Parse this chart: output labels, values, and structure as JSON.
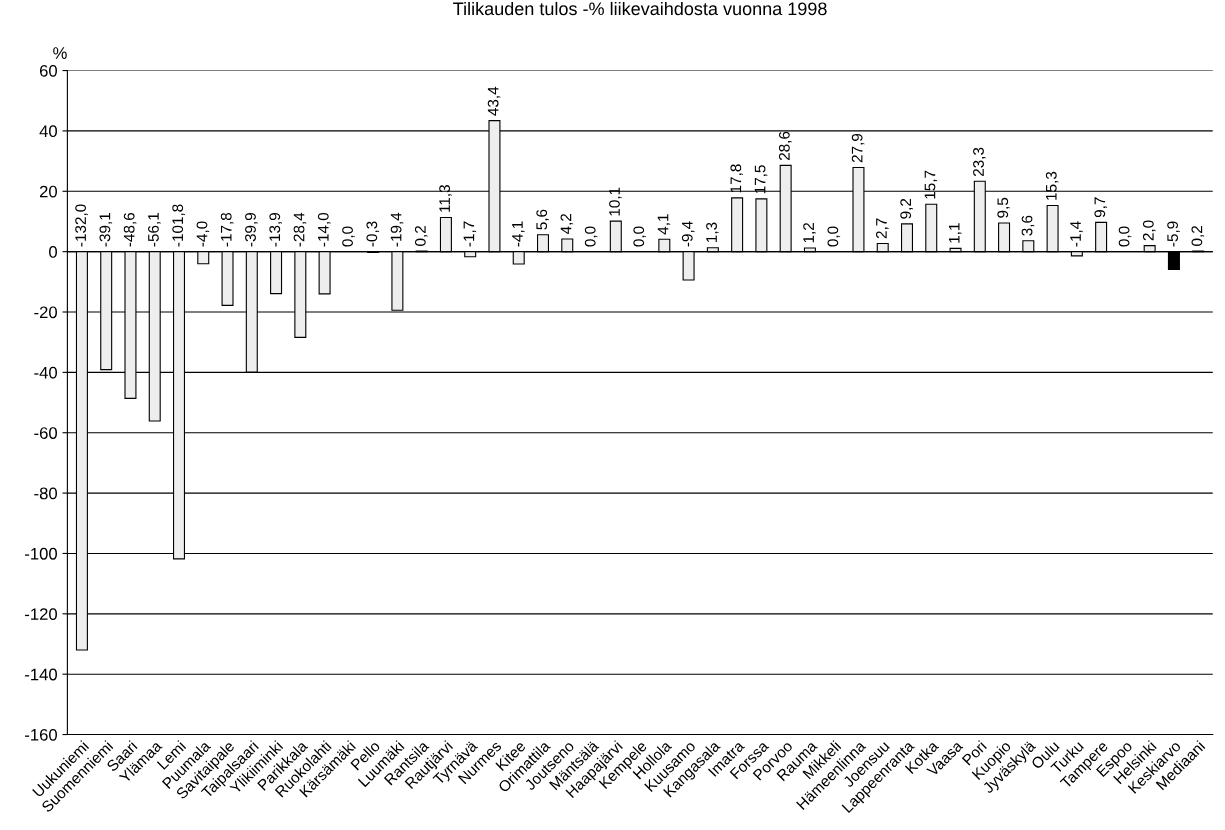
{
  "chart_data": {
    "type": "bar",
    "title": "Tilikauden tulos -% liikevaihdosta vuonna 1998",
    "ylabel": "%",
    "categories": [
      "Uukuniemi",
      "Suomenniemi",
      "Saari",
      "Ylämaa",
      "Lemi",
      "Puumala",
      "Savitaipale",
      "Taipalsaari",
      "Ylikiiminki",
      "Parikkala",
      "Ruokolahti",
      "Kärsämäki",
      "Pello",
      "Luumäki",
      "Rantsila",
      "Rautjärvi",
      "Tyrnävä",
      "Nurmes",
      "Kitee",
      "Orimattila",
      "Joutseno",
      "Mäntsälä",
      "Haapajärvi",
      "Kempele",
      "Hollola",
      "Kuusamo",
      "Kangasala",
      "Imatra",
      "Forssa",
      "Porvoo",
      "Rauma",
      "Mikkeli",
      "Hämeenlinna",
      "Joensuu",
      "Lappeenranta",
      "Kotka",
      "Vaasa",
      "Pori",
      "Kuopio",
      "Jyväskylä",
      "Oulu",
      "Turku",
      "Tampere",
      "Espoo",
      "Helsinki",
      "Keskiarvo",
      "Mediaani"
    ],
    "values": [
      -132.0,
      -39.1,
      -48.6,
      -56.1,
      -101.8,
      -4.0,
      -17.8,
      -39.9,
      -13.9,
      -28.4,
      -14.0,
      0.0,
      -0.3,
      -19.4,
      0.2,
      11.3,
      -1.7,
      43.4,
      -4.1,
      5.6,
      4.2,
      0.0,
      10.1,
      0.0,
      4.1,
      -9.4,
      1.3,
      17.8,
      17.5,
      28.6,
      1.2,
      0.0,
      27.9,
      2.7,
      9.2,
      15.7,
      1.1,
      23.3,
      9.5,
      3.6,
      15.3,
      -1.4,
      9.7,
      0.0,
      2.0,
      -5.9,
      0.2
    ],
    "value_labels": [
      "-132,0",
      "-39,1",
      "-48,6",
      "-56,1",
      "-101,8",
      "-4,0",
      "-17,8",
      "-39,9",
      "-13,9",
      "-28,4",
      "-14,0",
      "0,0",
      "-0,3",
      "-19,4",
      "0,2",
      "11,3",
      "-1,7",
      "43,4",
      "-4,1",
      "5,6",
      "4,2",
      "0,0",
      "10,1",
      "0,0",
      "4,1",
      "-9,4",
      "1,3",
      "17,8",
      "17,5",
      "28,6",
      "1,2",
      "0,0",
      "27,9",
      "2,7",
      "9,2",
      "15,7",
      "1,1",
      "23,3",
      "9,5",
      "3,6",
      "15,3",
      "-1,4",
      "9,7",
      "0,0",
      "2,0",
      "-5,9",
      "0,2"
    ],
    "colors": [
      "#eeeeee",
      "#eeeeee",
      "#eeeeee",
      "#eeeeee",
      "#eeeeee",
      "#eeeeee",
      "#eeeeee",
      "#eeeeee",
      "#eeeeee",
      "#eeeeee",
      "#eeeeee",
      "#eeeeee",
      "#eeeeee",
      "#eeeeee",
      "#eeeeee",
      "#eeeeee",
      "#eeeeee",
      "#eeeeee",
      "#eeeeee",
      "#eeeeee",
      "#eeeeee",
      "#eeeeee",
      "#eeeeee",
      "#eeeeee",
      "#eeeeee",
      "#eeeeee",
      "#eeeeee",
      "#eeeeee",
      "#eeeeee",
      "#eeeeee",
      "#eeeeee",
      "#eeeeee",
      "#eeeeee",
      "#eeeeee",
      "#eeeeee",
      "#eeeeee",
      "#eeeeee",
      "#eeeeee",
      "#eeeeee",
      "#eeeeee",
      "#eeeeee",
      "#eeeeee",
      "#eeeeee",
      "#eeeeee",
      "#eeeeee",
      "#000000",
      "#eeeeee"
    ],
    "ylim": [
      -160,
      60
    ],
    "yticks": [
      -160,
      -140,
      -120,
      -100,
      -80,
      -60,
      -40,
      -20,
      0,
      20,
      40,
      60
    ],
    "grid": "y",
    "legend": false
  }
}
